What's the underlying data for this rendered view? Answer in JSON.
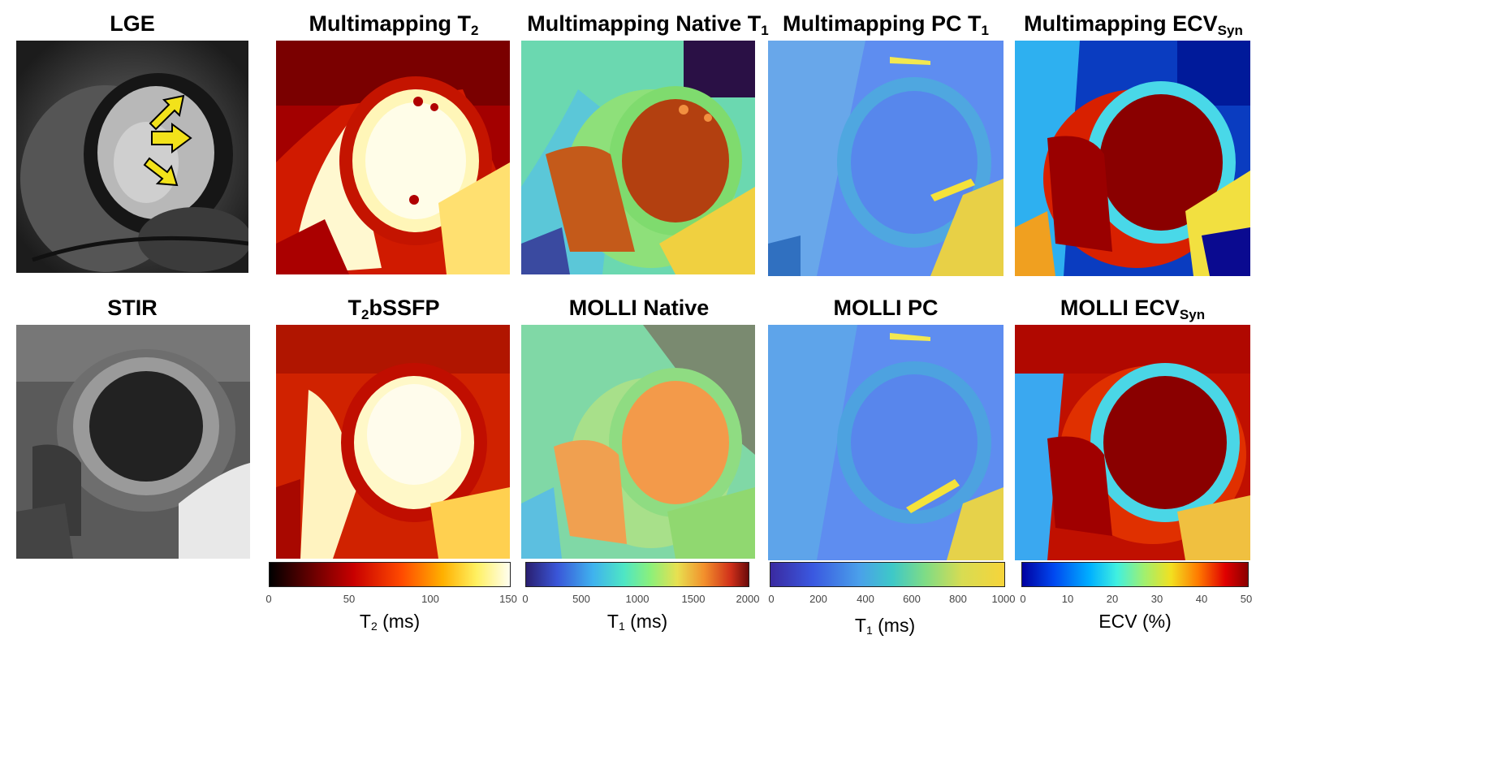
{
  "titles": {
    "lge": "LGE",
    "mm_t2": {
      "main": "Multimapping T",
      "sub": "2"
    },
    "mm_native_t1": {
      "main": "Multimapping Native T",
      "sub": "1"
    },
    "mm_pc_t1": {
      "main": "Multimapping PC T",
      "sub": "1"
    },
    "mm_ecv": {
      "main": "Multimapping ECV",
      "sub": "Syn"
    },
    "stir": "STIR",
    "t2bssfp": {
      "pre": "T",
      "sub": "2",
      "post": "bSSFP"
    },
    "molli_native": "MOLLI Native",
    "molli_pc": "MOLLI PC",
    "molli_ecv": {
      "main": "MOLLI ECV",
      "sub": "Syn"
    }
  },
  "colorbars": {
    "t2": {
      "ticks": [
        "0",
        "50",
        "100",
        "150"
      ],
      "label_pre": "T",
      "label_sub": "2",
      "label_post": " (ms)"
    },
    "t1_native": {
      "ticks": [
        "0",
        "500",
        "1000",
        "1500",
        "2000"
      ],
      "label_pre": "T",
      "label_sub": "1",
      "label_post": " (ms)"
    },
    "t1_pc": {
      "ticks": [
        "0",
        "200",
        "400",
        "600",
        "800",
        "1000"
      ],
      "label_pre": "T",
      "label_sub": "1",
      "label_post": " (ms)"
    },
    "ecv": {
      "ticks": [
        "0",
        "10",
        "20",
        "30",
        "40",
        "50"
      ],
      "label": "ECV (%)"
    }
  },
  "colors": {
    "hot_low": "#000000",
    "hot_mid": "#d40000",
    "hot_high": "#fffde0",
    "jet_low": "#1e1ea0",
    "jet_mid": "#5fe07a",
    "jet_high": "#8b0d0d"
  }
}
